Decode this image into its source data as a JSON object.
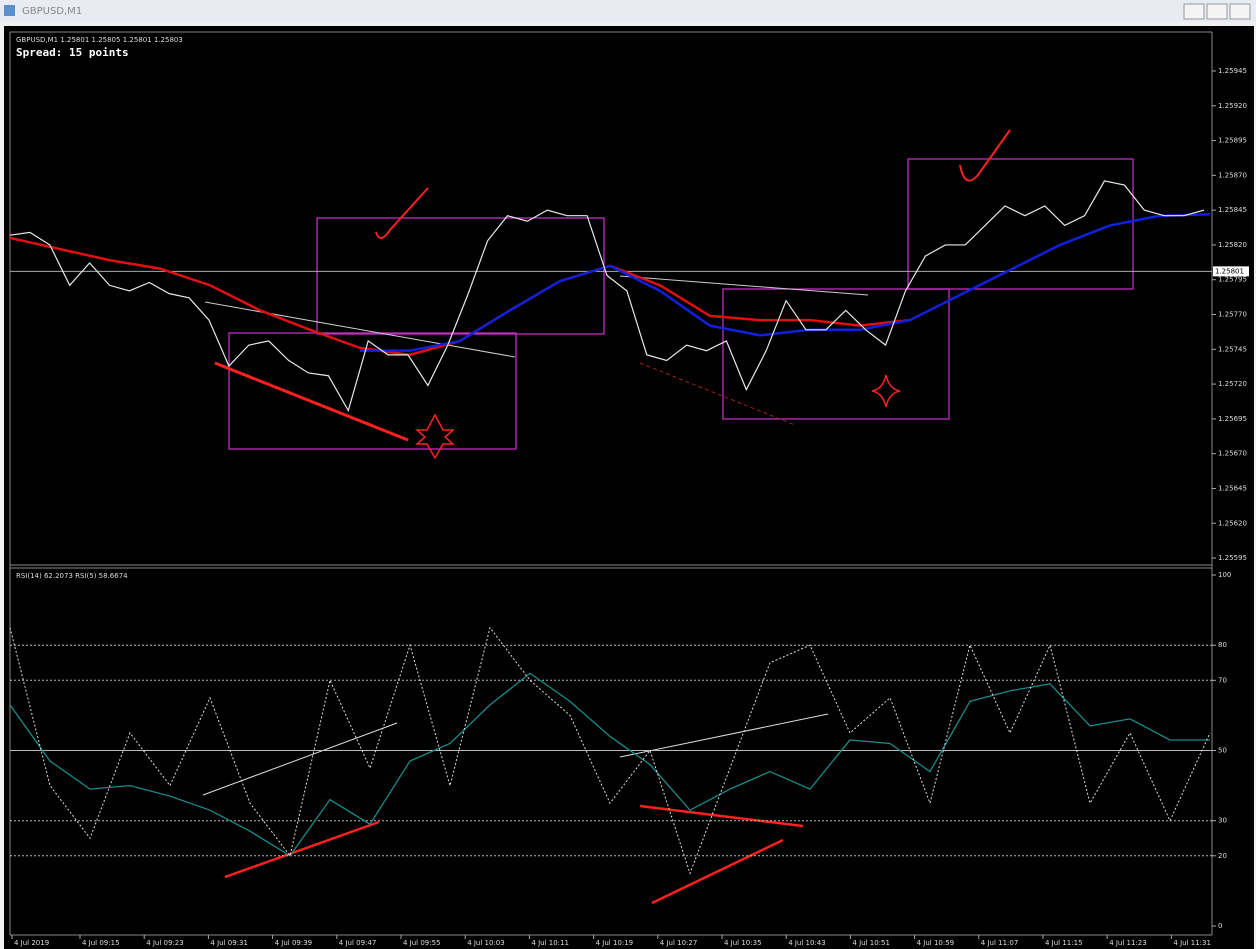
{
  "window": {
    "title": "GBPUSD,M1"
  },
  "price_panel": {
    "header": "GBPUSD,M1 1.25801 1.25805 1.25801 1.25803",
    "spread": "Spread: 15 points",
    "ylim": [
      1.2559,
      1.25973
    ],
    "yticks": [
      1.25945,
      {
        "value": 1.2592,
        "label": "1.25920"
      },
      1.25895,
      {
        "value": 1.2587,
        "label": "1.25870"
      },
      1.25845,
      {
        "value": 1.2582,
        "label": "1.25820"
      },
      1.25795,
      {
        "value": 1.2577,
        "label": "1.25770"
      },
      1.25745,
      {
        "value": 1.2572,
        "label": "1.25720"
      },
      1.25695,
      {
        "value": 1.2567,
        "label": "1.25670"
      },
      1.25645,
      {
        "value": 1.2562,
        "label": "1.25620"
      },
      1.25595
    ],
    "current_price": 1.25801,
    "close": [
      1.25827,
      1.25829,
      1.2582,
      1.25791,
      1.25807,
      1.25791,
      1.25787,
      1.25793,
      1.25785,
      1.25782,
      1.25766,
      1.25733,
      1.25748,
      1.25751,
      1.25737,
      1.25728,
      1.25726,
      1.25701,
      1.25751,
      1.25741,
      1.25741,
      1.25719,
      1.25748,
      1.25784,
      1.25823,
      1.25841,
      1.25837,
      1.25845,
      1.25841,
      1.25841,
      1.25798,
      1.25787,
      1.25741,
      1.25737,
      1.25748,
      1.25744,
      1.25751,
      1.25716,
      1.25744,
      1.2578,
      1.25759,
      1.25759,
      1.25773,
      1.25759,
      1.25748,
      1.25787,
      1.25812,
      1.2582,
      1.2582,
      1.25834,
      1.25848,
      1.25841,
      1.25848,
      1.25834,
      1.25841,
      1.25866,
      1.25863,
      1.25845,
      1.25841,
      1.25841,
      1.25845
    ],
    "ma_red": [
      1.25825,
      1.25817,
      1.25809,
      1.25803,
      1.25791,
      1.25773,
      1.25759,
      1.25746,
      1.25741,
      1.25751,
      1.25773,
      1.25794,
      1.25805,
      1.25791,
      1.25769,
      1.25766,
      1.25766,
      1.25762,
      1.25766
    ],
    "ma_blue": [
      1.25744,
      1.25744,
      1.25751,
      1.25773,
      1.25794,
      1.25805,
      1.25787,
      1.25762,
      1.25755,
      1.25759,
      1.25759,
      1.25766,
      1.25784,
      1.25802,
      1.2582,
      1.25834,
      1.25841,
      1.25842
    ]
  },
  "rsi_panel": {
    "header": "RSI(14) 62.2073  RSI(5) 58.6674",
    "ylim": [
      0,
      100
    ],
    "yticks": [
      100,
      80,
      70,
      50,
      30,
      20,
      0
    ],
    "levels": [
      80,
      70,
      50,
      30,
      20
    ],
    "rsi14": [
      63,
      47,
      39,
      40,
      37,
      33,
      27,
      20,
      36,
      29,
      47,
      52,
      63,
      72,
      64,
      54,
      46,
      33,
      39,
      44,
      39,
      53,
      52,
      44,
      64,
      67,
      69,
      57,
      59,
      53,
      53
    ],
    "rsi5": [
      85,
      40,
      25,
      55,
      40,
      65,
      35,
      20,
      70,
      45,
      80,
      40,
      85,
      70,
      60,
      35,
      50,
      15,
      45,
      75,
      80,
      55,
      65,
      35,
      80,
      55,
      80,
      35,
      55,
      30,
      55
    ]
  },
  "time_axis": [
    "4 Jul 2019",
    "4 Jul 09:15",
    "4 Jul 09:23",
    "4 Jul 09:31",
    "4 Jul 09:39",
    "4 Jul 09:47",
    "4 Jul 09:55",
    "4 Jul 10:03",
    "4 Jul 10:11",
    "4 Jul 10:19",
    "4 Jul 10:27",
    "4 Jul 10:35",
    "4 Jul 10:43",
    "4 Jul 10:51",
    "4 Jul 10:59",
    "4 Jul 11:07",
    "4 Jul 11:15",
    "4 Jul 11:23",
    "4 Jul 11:31"
  ]
}
